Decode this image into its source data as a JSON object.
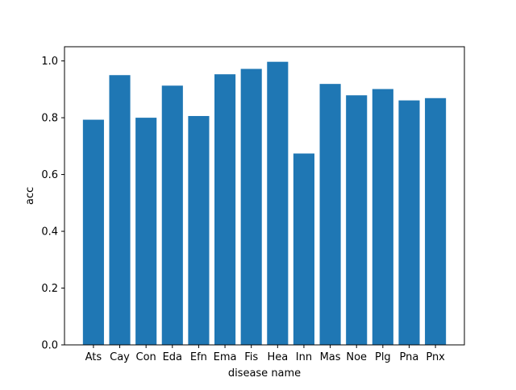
{
  "chart_data": {
    "type": "bar",
    "title": "",
    "xlabel": "disease name",
    "ylabel": "acc",
    "categories": [
      "Ats",
      "Cay",
      "Con",
      "Eda",
      "Efn",
      "Ema",
      "Fis",
      "Hea",
      "Inn",
      "Mas",
      "Noe",
      "Plg",
      "Pna",
      "Pnx"
    ],
    "values": [
      0.793,
      0.95,
      0.8,
      0.913,
      0.806,
      0.953,
      0.972,
      0.997,
      0.674,
      0.919,
      0.879,
      0.901,
      0.861,
      0.869
    ],
    "ylim": [
      0,
      1.05
    ],
    "yticks": [
      0.0,
      0.2,
      0.4,
      0.6,
      0.8,
      1.0
    ],
    "ytick_labels": [
      "0.0",
      "0.2",
      "0.4",
      "0.6",
      "0.8",
      "1.0"
    ],
    "grid": false,
    "legend": "none",
    "bar_color": "#1f77b4"
  }
}
